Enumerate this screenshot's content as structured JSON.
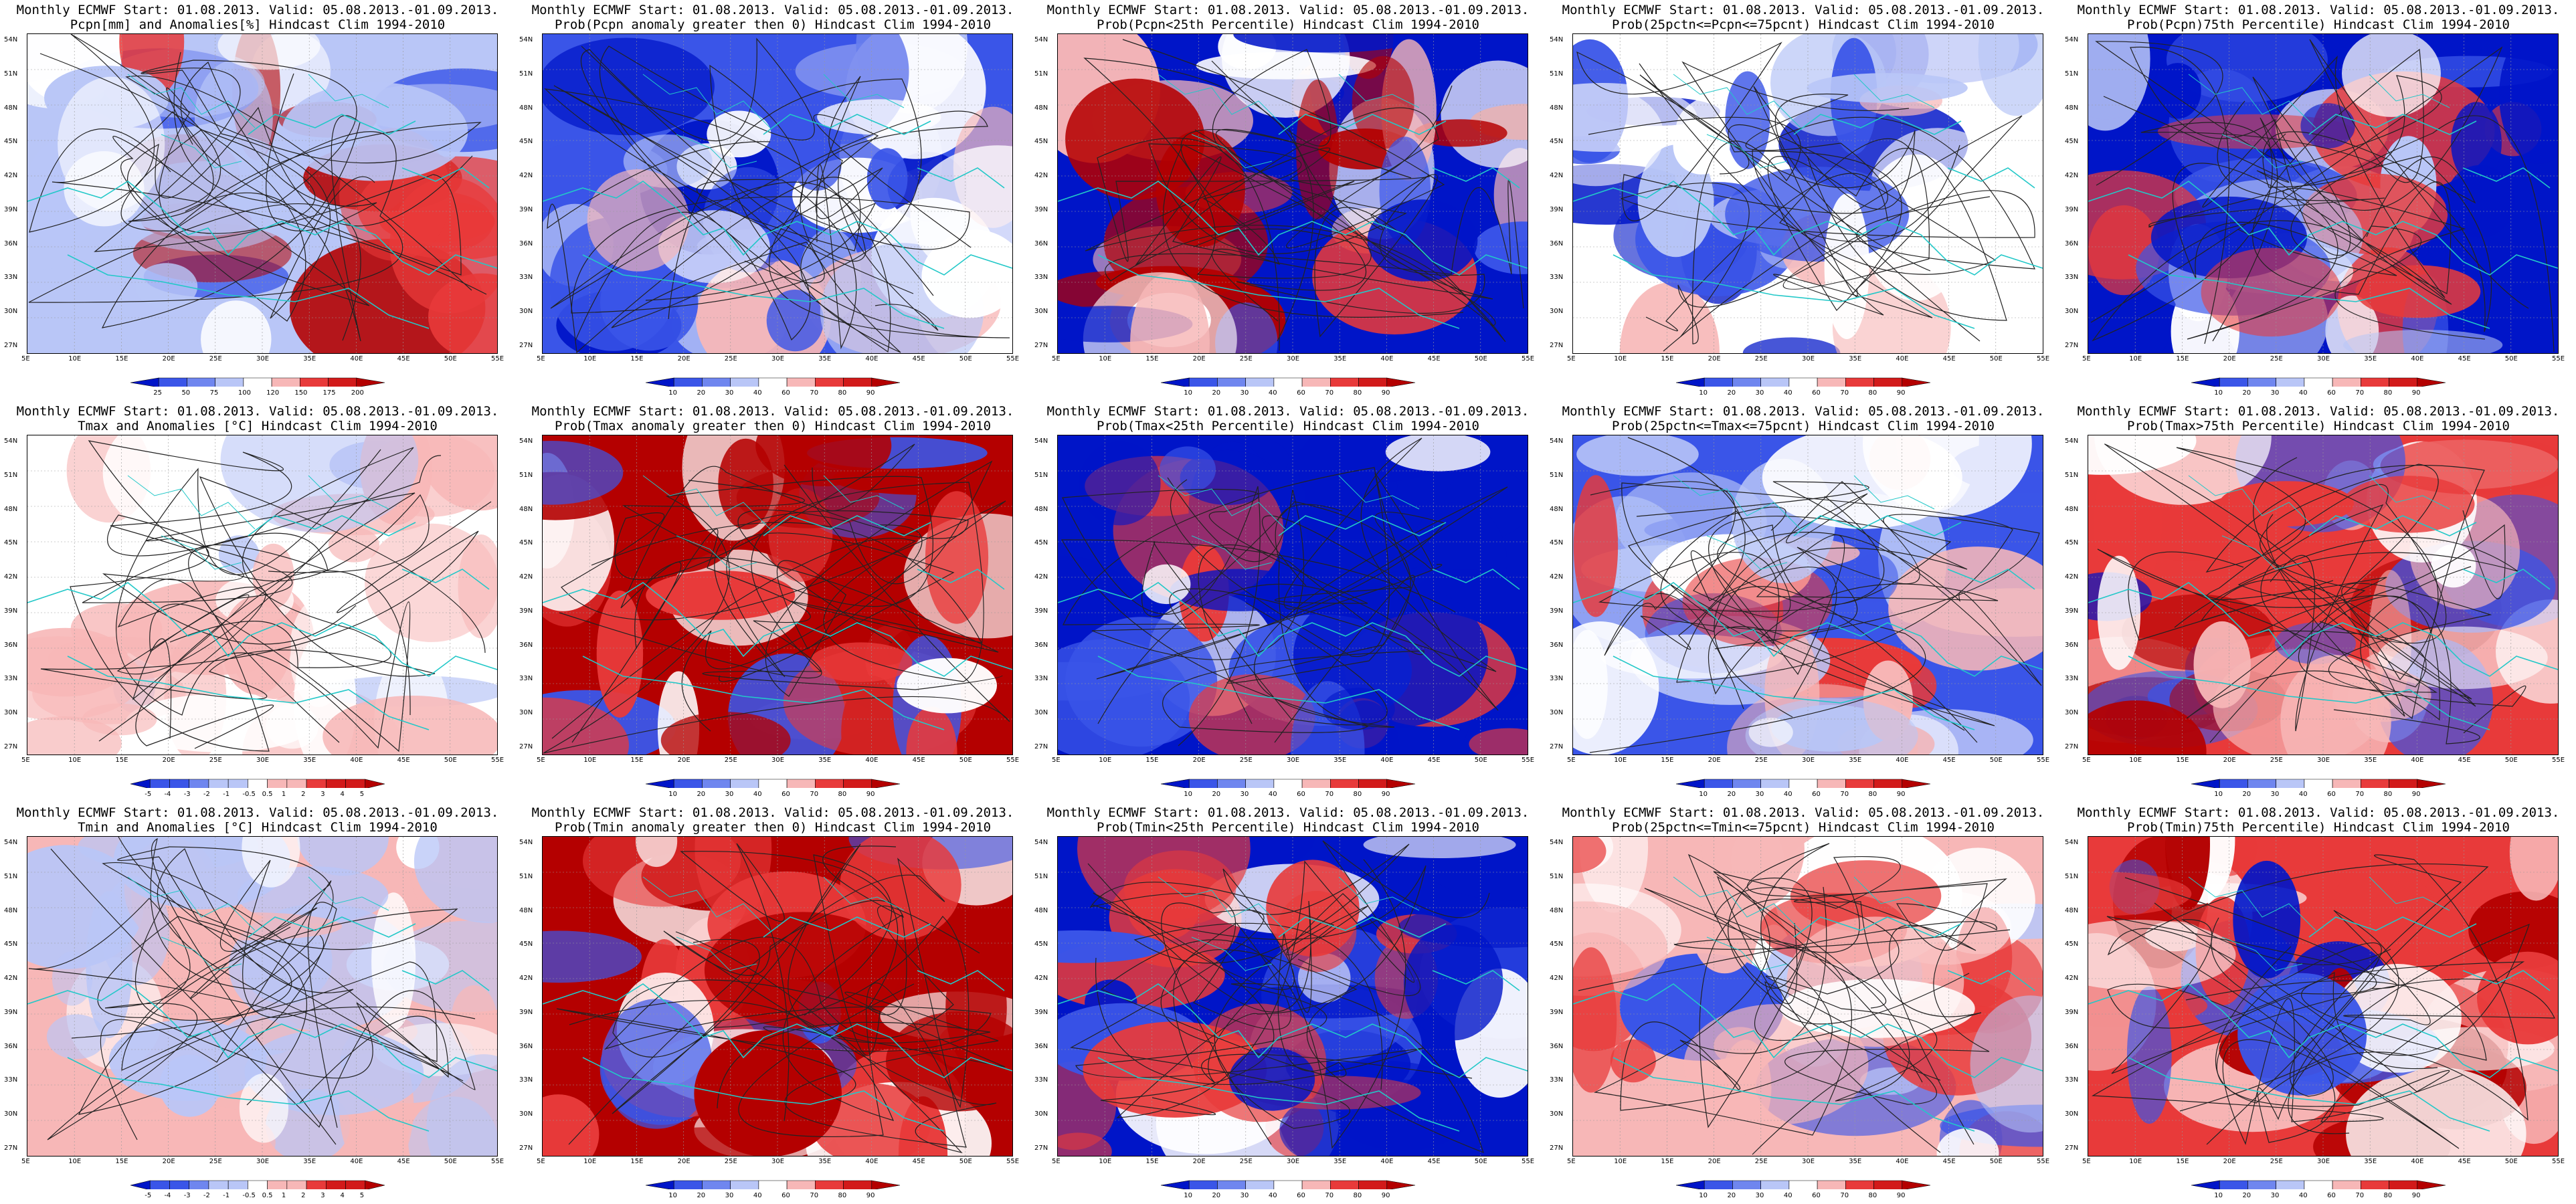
{
  "figure": {
    "lat_ticks": [
      "54N",
      "51N",
      "48N",
      "45N",
      "42N",
      "39N",
      "36N",
      "33N",
      "30N",
      "27N"
    ],
    "lon_ticks": [
      "5E",
      "10E",
      "15E",
      "20E",
      "25E",
      "30E",
      "35E",
      "40E",
      "45E",
      "50E",
      "55E"
    ],
    "colors": {
      "blue_dark": "#0015c8",
      "blue_mid": "#3a55e8",
      "blue_light": "#b9c6f7",
      "white": "#ffffff",
      "red_light": "#f7b7b7",
      "red_mid": "#e83a3a",
      "red_dark": "#b40000",
      "coast": "#22c8c8",
      "contour": "#222222"
    }
  },
  "panels": [
    {
      "title1": "Monthly ECMWF Start: 01.08.2013. Valid: 05.08.2013.-01.09.2013.",
      "title2": "Pcpn[mm] and Anomalies[%] Hindcast Clim 1994-2010",
      "scale": [
        "25",
        "50",
        "75",
        "100",
        "120",
        "150",
        "175",
        "200"
      ],
      "pattern": "pcpn"
    },
    {
      "title1": "Monthly ECMWF Start: 01.08.2013. Valid: 05.08.2013.-01.09.2013.",
      "title2": "Prob(Pcpn anomaly greater then 0) Hindcast Clim 1994-2010",
      "scale": [
        "10",
        "20",
        "30",
        "40",
        "60",
        "70",
        "80",
        "90"
      ],
      "pattern": "pcpn_pos"
    },
    {
      "title1": "Monthly ECMWF Start: 01.08.2013. Valid: 05.08.2013.-01.09.2013.",
      "title2": "Prob(Pcpn<25th Percentile) Hindcast Clim 1994-2010",
      "scale": [
        "10",
        "20",
        "30",
        "40",
        "60",
        "70",
        "80",
        "90"
      ],
      "pattern": "pcpn_low"
    },
    {
      "title1": "Monthly ECMWF Start: 01.08.2013. Valid: 05.08.2013.-01.09.2013.",
      "title2": "Prob(25pctn<=Pcpn<=75pcnt) Hindcast Clim 1994-2010",
      "scale": [
        "10",
        "20",
        "30",
        "40",
        "60",
        "70",
        "80",
        "90"
      ],
      "pattern": "pcpn_mid"
    },
    {
      "title1": "Monthly ECMWF Start: 01.08.2013. Valid: 05.08.2013.-01.09.2013.",
      "title2": "Prob(Pcpn)75th Percentile) Hindcast Clim 1994-2010",
      "scale": [
        "10",
        "20",
        "30",
        "40",
        "60",
        "70",
        "80",
        "90"
      ],
      "pattern": "pcpn_high"
    },
    {
      "title1": "Monthly ECMWF Start: 01.08.2013. Valid: 05.08.2013.-01.09.2013.",
      "title2": "Tmax and Anomalies [°C] Hindcast Clim 1994-2010",
      "scale": [
        "-5",
        "-4",
        "-3",
        "-2",
        "-1",
        "-0.5",
        "0.5",
        "1",
        "2",
        "3",
        "4",
        "5"
      ],
      "pattern": "tmax"
    },
    {
      "title1": "Monthly ECMWF Start: 01.08.2013. Valid: 05.08.2013.-01.09.2013.",
      "title2": "Prob(Tmax anomaly greater then 0) Hindcast Clim 1994-2010",
      "scale": [
        "10",
        "20",
        "30",
        "40",
        "60",
        "70",
        "80",
        "90"
      ],
      "pattern": "tmax_pos"
    },
    {
      "title1": "Monthly ECMWF Start: 01.08.2013. Valid: 05.08.2013.-01.09.2013.",
      "title2": "Prob(Tmax<25th Percentile) Hindcast Clim 1994-2010",
      "scale": [
        "10",
        "20",
        "30",
        "40",
        "60",
        "70",
        "80",
        "90"
      ],
      "pattern": "tmax_low"
    },
    {
      "title1": "Monthly ECMWF Start: 01.08.2013. Valid: 05.08.2013.-01.09.2013.",
      "title2": "Prob(25pctn<=Tmax<=75pcnt) Hindcast Clim 1994-2010",
      "scale": [
        "10",
        "20",
        "30",
        "40",
        "60",
        "70",
        "80",
        "90"
      ],
      "pattern": "tmax_mid"
    },
    {
      "title1": "Monthly ECMWF Start: 01.08.2013. Valid: 05.08.2013.-01.09.2013.",
      "title2": "Prob(Tmax>75th Percentile) Hindcast Clim 1994-2010",
      "scale": [
        "10",
        "20",
        "30",
        "40",
        "60",
        "70",
        "80",
        "90"
      ],
      "pattern": "tmax_high"
    },
    {
      "title1": "Monthly ECMWF Start: 01.08.2013. Valid: 05.08.2013.-01.09.2013.",
      "title2": "Tmin and Anomalies [°C] Hindcast Clim 1994-2010",
      "scale": [
        "-5",
        "-4",
        "-3",
        "-2",
        "-1",
        "-0.5",
        "0.5",
        "1",
        "2",
        "3",
        "4",
        "5"
      ],
      "pattern": "tmin"
    },
    {
      "title1": "Monthly ECMWF Start: 01.08.2013. Valid: 05.08.2013.-01.09.2013.",
      "title2": "Prob(Tmin anomaly greater then 0) Hindcast Clim 1994-2010",
      "scale": [
        "10",
        "20",
        "30",
        "40",
        "60",
        "70",
        "80",
        "90"
      ],
      "pattern": "tmin_pos"
    },
    {
      "title1": "Monthly ECMWF Start: 01.08.2013. Valid: 05.08.2013.-01.09.2013.",
      "title2": "Prob(Tmin<25th Percentile) Hindcast Clim 1994-2010",
      "scale": [
        "10",
        "20",
        "30",
        "40",
        "60",
        "70",
        "80",
        "90"
      ],
      "pattern": "tmin_low"
    },
    {
      "title1": "Monthly ECMWF Start: 01.08.2013. Valid: 05.08.2013.-01.09.2013.",
      "title2": "Prob(25pctn<=Tmin<=75pcnt) Hindcast Clim 1994-2010",
      "scale": [
        "10",
        "20",
        "30",
        "40",
        "60",
        "70",
        "80",
        "90"
      ],
      "pattern": "tmin_mid"
    },
    {
      "title1": "Monthly ECMWF Start: 01.08.2013. Valid: 05.08.2013.-01.09.2013.",
      "title2": "Prob(Tmin)75th Percentile) Hindcast Clim 1994-2010",
      "scale": [
        "10",
        "20",
        "30",
        "40",
        "60",
        "70",
        "80",
        "90"
      ],
      "pattern": "tmin_high"
    }
  ],
  "chart_data": [
    {
      "type": "heatmap",
      "title": "Pcpn[mm] and Anomalies[%] Hindcast Clim 1994-2010",
      "x_range": [
        "5E",
        "55E"
      ],
      "y_range": [
        "27N",
        "54N"
      ],
      "colorbar": [
        25,
        50,
        75,
        100,
        120,
        150,
        175,
        200
      ]
    },
    {
      "type": "heatmap",
      "title": "Prob(Pcpn anomaly greater then 0) Hindcast Clim 1994-2010",
      "x_range": [
        "5E",
        "55E"
      ],
      "y_range": [
        "27N",
        "54N"
      ],
      "colorbar": [
        10,
        20,
        30,
        40,
        60,
        70,
        80,
        90
      ]
    },
    {
      "type": "heatmap",
      "title": "Prob(Pcpn<25th Percentile) Hindcast Clim 1994-2010",
      "x_range": [
        "5E",
        "55E"
      ],
      "y_range": [
        "27N",
        "54N"
      ],
      "colorbar": [
        10,
        20,
        30,
        40,
        60,
        70,
        80,
        90
      ]
    },
    {
      "type": "heatmap",
      "title": "Prob(25pctn<=Pcpn<=75pcnt) Hindcast Clim 1994-2010",
      "x_range": [
        "5E",
        "55E"
      ],
      "y_range": [
        "27N",
        "54N"
      ],
      "colorbar": [
        10,
        20,
        30,
        40,
        60,
        70,
        80,
        90
      ]
    },
    {
      "type": "heatmap",
      "title": "Prob(Pcpn)75th Percentile) Hindcast Clim 1994-2010",
      "x_range": [
        "5E",
        "55E"
      ],
      "y_range": [
        "27N",
        "54N"
      ],
      "colorbar": [
        10,
        20,
        30,
        40,
        60,
        70,
        80,
        90
      ]
    },
    {
      "type": "heatmap",
      "title": "Tmax and Anomalies [°C] Hindcast Clim 1994-2010",
      "x_range": [
        "5E",
        "55E"
      ],
      "y_range": [
        "27N",
        "54N"
      ],
      "colorbar": [
        -5,
        -4,
        -3,
        -2,
        -1,
        -0.5,
        0.5,
        1,
        2,
        3,
        4,
        5
      ]
    },
    {
      "type": "heatmap",
      "title": "Prob(Tmax anomaly greater then 0) Hindcast Clim 1994-2010",
      "x_range": [
        "5E",
        "55E"
      ],
      "y_range": [
        "27N",
        "54N"
      ],
      "colorbar": [
        10,
        20,
        30,
        40,
        60,
        70,
        80,
        90
      ]
    },
    {
      "type": "heatmap",
      "title": "Prob(Tmax<25th Percentile) Hindcast Clim 1994-2010",
      "x_range": [
        "5E",
        "55E"
      ],
      "y_range": [
        "27N",
        "54N"
      ],
      "colorbar": [
        10,
        20,
        30,
        40,
        60,
        70,
        80,
        90
      ]
    },
    {
      "type": "heatmap",
      "title": "Prob(25pctn<=Tmax<=75pcnt) Hindcast Clim 1994-2010",
      "x_range": [
        "5E",
        "55E"
      ],
      "y_range": [
        "27N",
        "54N"
      ],
      "colorbar": [
        10,
        20,
        30,
        40,
        60,
        70,
        80,
        90
      ]
    },
    {
      "type": "heatmap",
      "title": "Prob(Tmax>75th Percentile) Hindcast Clim 1994-2010",
      "x_range": [
        "5E",
        "55E"
      ],
      "y_range": [
        "27N",
        "54N"
      ],
      "colorbar": [
        10,
        20,
        30,
        40,
        60,
        70,
        80,
        90
      ]
    },
    {
      "type": "heatmap",
      "title": "Tmin and Anomalies [°C] Hindcast Clim 1994-2010",
      "x_range": [
        "5E",
        "55E"
      ],
      "y_range": [
        "27N",
        "54N"
      ],
      "colorbar": [
        -5,
        -4,
        -3,
        -2,
        -1,
        -0.5,
        0.5,
        1,
        2,
        3,
        4,
        5
      ]
    },
    {
      "type": "heatmap",
      "title": "Prob(Tmin anomaly greater then 0) Hindcast Clim 1994-2010",
      "x_range": [
        "5E",
        "55E"
      ],
      "y_range": [
        "27N",
        "54N"
      ],
      "colorbar": [
        10,
        20,
        30,
        40,
        60,
        70,
        80,
        90
      ]
    },
    {
      "type": "heatmap",
      "title": "Prob(Tmin<25th Percentile) Hindcast Clim 1994-2010",
      "x_range": [
        "5E",
        "55E"
      ],
      "y_range": [
        "27N",
        "54N"
      ],
      "colorbar": [
        10,
        20,
        30,
        40,
        60,
        70,
        80,
        90
      ]
    },
    {
      "type": "heatmap",
      "title": "Prob(25pctn<=Tmin<=75pcnt) Hindcast Clim 1994-2010",
      "x_range": [
        "5E",
        "55E"
      ],
      "y_range": [
        "27N",
        "54N"
      ],
      "colorbar": [
        10,
        20,
        30,
        40,
        60,
        70,
        80,
        90
      ]
    },
    {
      "type": "heatmap",
      "title": "Prob(Tmin)75th Percentile) Hindcast Clim 1994-2010",
      "x_range": [
        "5E",
        "55E"
      ],
      "y_range": [
        "27N",
        "54N"
      ],
      "colorbar": [
        10,
        20,
        30,
        40,
        60,
        70,
        80,
        90
      ]
    }
  ]
}
